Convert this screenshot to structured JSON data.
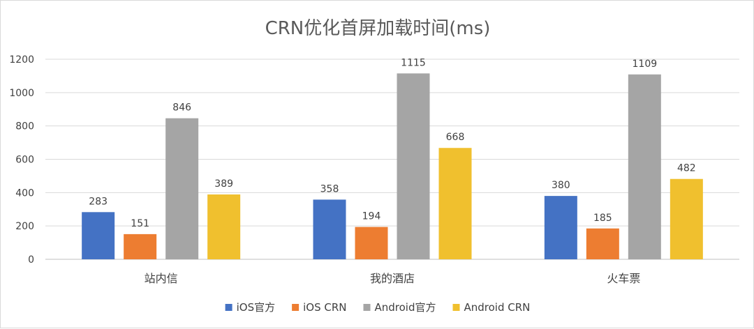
{
  "chart_data": {
    "type": "bar",
    "title": "CRN优化首屏加载时间(ms)",
    "xlabel": "",
    "ylabel": "",
    "categories": [
      "站内信",
      "我的酒店",
      "火车票"
    ],
    "series": [
      {
        "name": "iOS官方",
        "color": "#4472c4",
        "values": [
          283,
          358,
          380
        ]
      },
      {
        "name": "iOS CRN",
        "color": "#ed7d31",
        "values": [
          151,
          194,
          185
        ]
      },
      {
        "name": "Android官方",
        "color": "#a5a5a5",
        "values": [
          846,
          1115,
          1109
        ]
      },
      {
        "name": "Android CRN",
        "color": "#f0c02e",
        "values": [
          389,
          668,
          482
        ]
      }
    ],
    "ylim": [
      0,
      1200
    ],
    "yticks": [
      "0",
      "200",
      "400",
      "600",
      "800",
      "1000",
      "1200"
    ],
    "grid": true,
    "legend_position": "bottom"
  }
}
